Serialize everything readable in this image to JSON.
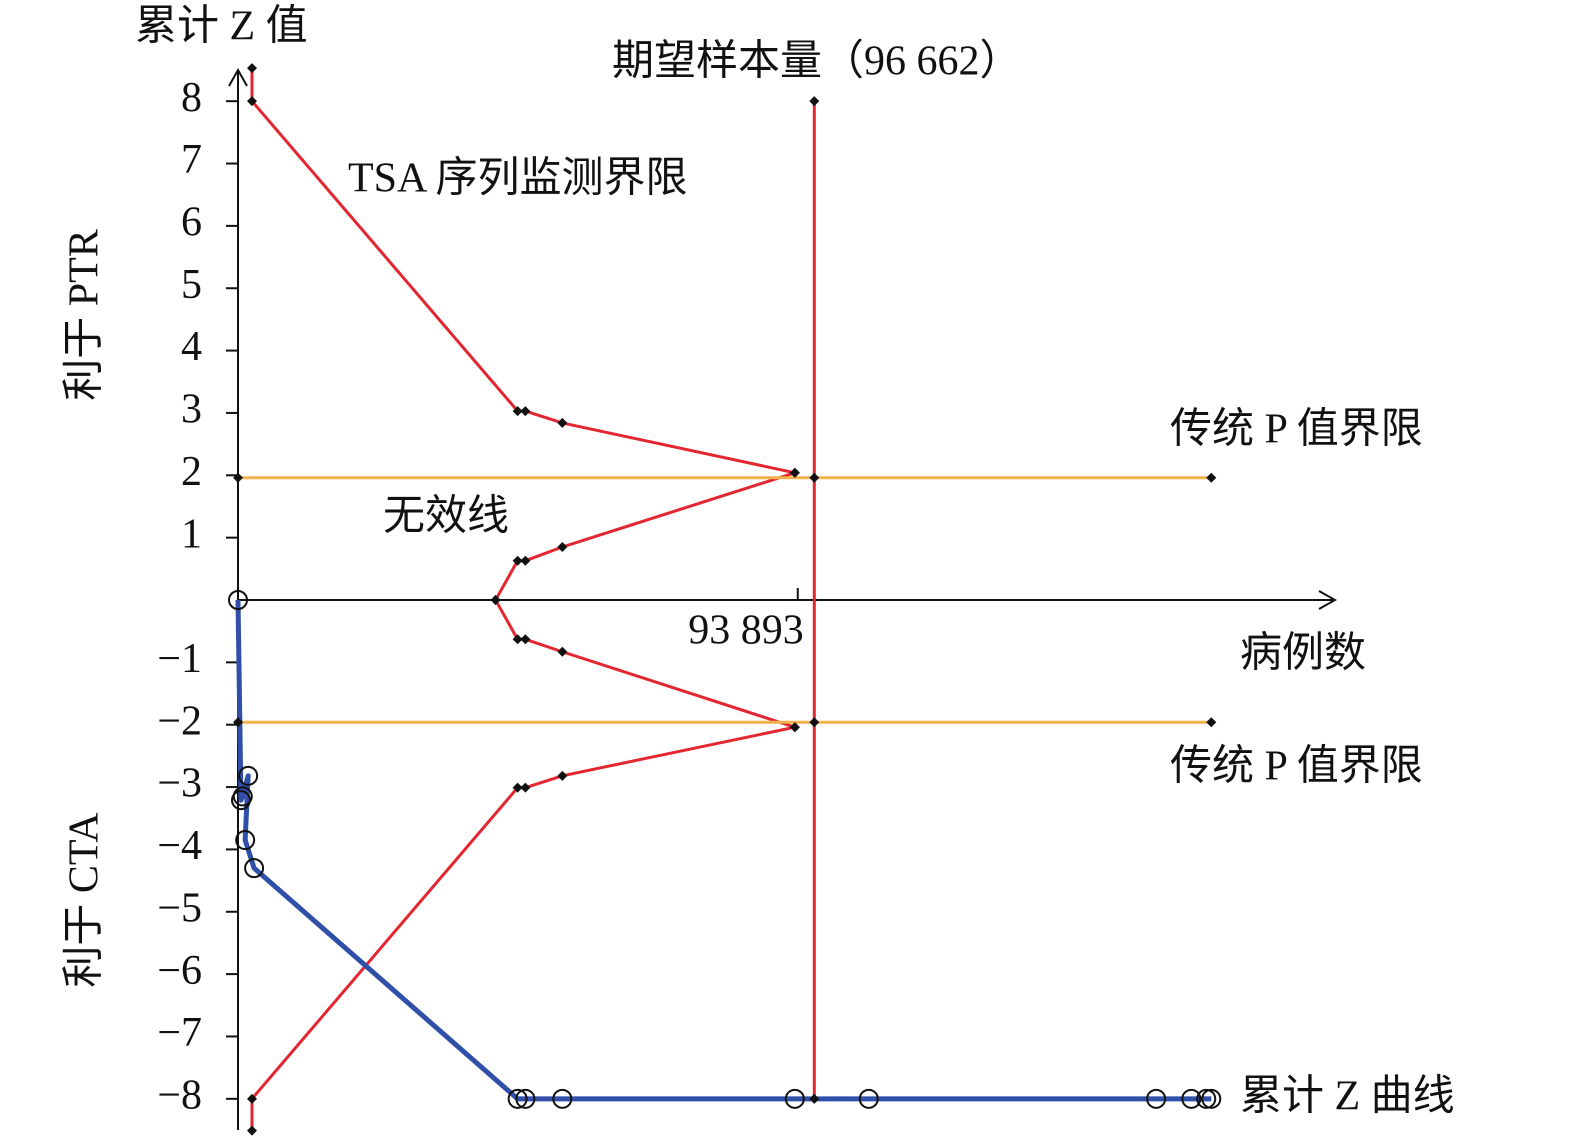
{
  "chart_data": {
    "type": "line",
    "y_label": "累计 Z 值",
    "x_label": "病例数",
    "annotations": [
      {
        "text": "期望样本量（96 662）",
        "color": "#e3262f"
      },
      {
        "text": "TSA 序列监测界限",
        "color": "#e3262f"
      },
      {
        "text": "传统 P 值界限",
        "color": "#e07a22"
      },
      {
        "text": "传统 P 值界限",
        "color": "#e07a22"
      },
      {
        "text": "无效线",
        "color": "#111111"
      },
      {
        "text": "利于 PTR",
        "color": "#111111"
      },
      {
        "text": "利于 CTA",
        "color": "#111111"
      }
    ],
    "xlim": [
      0,
      184000
    ],
    "ylim": [
      -8.5,
      8.5
    ],
    "xticks": [
      {
        "value": 93893,
        "label": "93 893"
      }
    ],
    "yticks": [
      8,
      7,
      6,
      5,
      4,
      3,
      2,
      1,
      {
        "value": -1,
        "label": "−1"
      },
      {
        "value": -2,
        "label": "−2"
      },
      {
        "value": -3,
        "label": "−3"
      },
      {
        "value": -4,
        "label": "−4"
      },
      {
        "value": -5,
        "label": "−5"
      },
      {
        "value": -6,
        "label": "−6"
      },
      {
        "value": -7,
        "label": "−7"
      },
      {
        "value": -8,
        "label": "−8"
      }
    ],
    "series": [
      {
        "color": "#e3262f",
        "marker": "diamond",
        "width": 3,
        "x": [
          2350,
          2350,
          46900,
          48200,
          54400,
          93400
        ],
        "values": [
          8.53,
          8,
          3.03,
          3.03,
          2.84,
          2.04
        ]
      },
      {
        "color": "#e3262f",
        "marker": "diamond",
        "width": 3,
        "x": [
          43200,
          46900,
          48200,
          54400,
          93400
        ],
        "values": [
          0,
          0.63,
          0.63,
          0.85,
          2.04
        ]
      },
      {
        "color": "#e3262f",
        "marker": "diamond",
        "width": 3,
        "x": [
          43200,
          46900,
          48200,
          54400,
          93400
        ],
        "values": [
          0,
          -0.63,
          -0.63,
          -0.83,
          -2.04
        ]
      },
      {
        "color": "#e3262f",
        "marker": "diamond",
        "width": 3,
        "x": [
          2350,
          2350,
          46900,
          48200,
          54400,
          93400
        ],
        "values": [
          -8.51,
          -8,
          -3.01,
          -3.01,
          -2.82,
          -2.04
        ]
      },
      {
        "color": "#f0b24a",
        "marker": "diamond",
        "width": 3,
        "x": [
          0,
          163250
        ],
        "values": [
          1.96,
          1.96
        ]
      },
      {
        "color": "#f0b24a",
        "marker": "diamond",
        "width": 3,
        "x": [
          0,
          163250
        ],
        "values": [
          -1.96,
          -1.96
        ]
      },
      {
        "name": "期望样本量",
        "color": "#e3262f",
        "marker": "diamond",
        "width": 3,
        "x": [
          96662,
          96662,
          96662,
          96662
        ],
        "values": [
          8,
          1.96,
          -1.96,
          -8
        ]
      },
      {
        "name": "累计 Z 曲线",
        "color": "#2f4fa8",
        "marker": "circle",
        "width": 5,
        "x": [
          0,
          500,
          800,
          1700,
          1200,
          2700,
          46900,
          48200,
          54400,
          93400,
          105800,
          154000,
          159900,
          162400,
          163250
        ],
        "values": [
          0,
          -3.21,
          -3.15,
          -2.82,
          -3.85,
          -4.3,
          -8,
          -8,
          -8,
          -8,
          -8,
          -8,
          -8,
          -8,
          -8
        ]
      }
    ]
  }
}
